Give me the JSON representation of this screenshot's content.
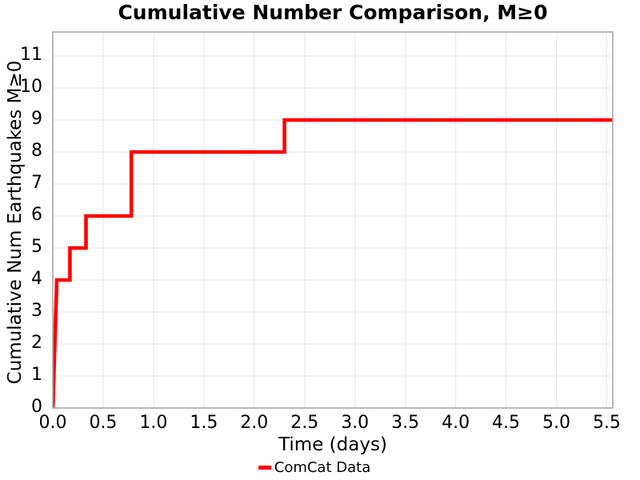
{
  "title": "Cumulative Number Comparison, M≥0",
  "colors": {
    "line": "#ff0000",
    "grid": "#ebebeb",
    "spine": "#a8a8a8",
    "text": "#000000",
    "background": "#ffffff"
  },
  "legend": {
    "items": [
      {
        "label": "ComCat Data",
        "color": "#ff0000",
        "swatch": "line"
      }
    ]
  },
  "chart_data": {
    "type": "line",
    "subtype": "cumulative-step",
    "title": "Cumulative Number Comparison, M≥0",
    "xlabel": "Time (days)",
    "ylabel": "Cumulative Num Earthquakes M≥0",
    "xlim": [
      0,
      5.56
    ],
    "ylim": [
      0,
      11.75
    ],
    "xticks": [
      0,
      0.5,
      1.0,
      1.5,
      2.0,
      2.5,
      3.0,
      3.5,
      4.0,
      4.5,
      5.0,
      5.5
    ],
    "xtick_labels": [
      "0.0",
      "0.5",
      "1.0",
      "1.5",
      "2.0",
      "2.5",
      "3.0",
      "3.5",
      "4.0",
      "4.5",
      "5.0",
      "5.5"
    ],
    "yticks": [
      0,
      1,
      2,
      3,
      4,
      5,
      6,
      7,
      8,
      9,
      10,
      11
    ],
    "ytick_labels": [
      "0",
      "1",
      "2",
      "3",
      "4",
      "5",
      "6",
      "7",
      "8",
      "9",
      "10",
      "11"
    ],
    "grid": true,
    "legend_position": "bottom-center",
    "series": [
      {
        "name": "ComCat Data",
        "color": "#ff0000",
        "line_width": 4.6,
        "points": [
          [
            0,
            0
          ],
          [
            0.01,
            1
          ],
          [
            0.02,
            2
          ],
          [
            0.03,
            3
          ],
          [
            0.04,
            4
          ],
          [
            0.17,
            4
          ],
          [
            0.17,
            5
          ],
          [
            0.33,
            5
          ],
          [
            0.33,
            6
          ],
          [
            0.78,
            6
          ],
          [
            0.78,
            8
          ],
          [
            2.3,
            8
          ],
          [
            2.3,
            9
          ],
          [
            5.56,
            9
          ]
        ]
      }
    ]
  }
}
